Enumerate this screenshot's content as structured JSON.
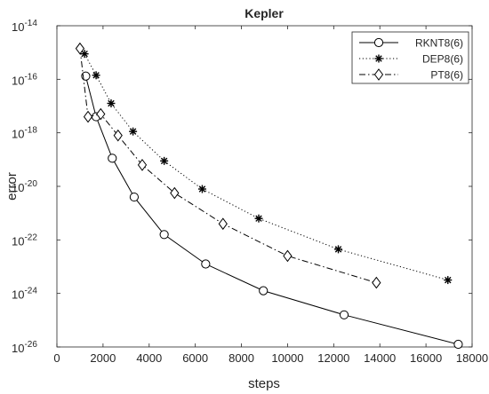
{
  "chart_data": {
    "type": "line",
    "title": "Kepler",
    "xlabel": "steps",
    "ylabel": "error",
    "xlim": [
      0,
      18000
    ],
    "ylim_exp": [
      -26,
      -14
    ],
    "yscale": "log",
    "x_ticks": [
      0,
      2000,
      4000,
      6000,
      8000,
      10000,
      12000,
      14000,
      16000,
      18000
    ],
    "y_ticks_exp": [
      -26,
      -24,
      -22,
      -20,
      -18,
      -16,
      -14
    ],
    "y_tick_base": "10",
    "grid": false,
    "legend_position": "top-right",
    "series": [
      {
        "name": "RKNT8(6)",
        "color": "#000000",
        "line_style": "solid",
        "marker": "circle",
        "x": [
          1250,
          1700,
          2400,
          3350,
          4650,
          6450,
          8950,
          12450,
          17400
        ],
        "y_exp": [
          -15.88,
          -17.4,
          -18.95,
          -20.4,
          -21.8,
          -22.9,
          -23.9,
          -24.8,
          -25.9
        ]
      },
      {
        "name": "DEP8(6)",
        "color": "#000000",
        "line_style": "dotted",
        "marker": "asterisk",
        "x": [
          1200,
          1700,
          2350,
          3300,
          4650,
          6300,
          8750,
          12200,
          16950
        ],
        "y_exp": [
          -15.05,
          -15.85,
          -16.9,
          -17.95,
          -19.05,
          -20.1,
          -21.2,
          -22.35,
          -23.5
        ]
      },
      {
        "name": "PT8(6)",
        "color": "#000000",
        "line_style": "dashdot",
        "marker": "diamond",
        "x": [
          1000,
          1350,
          1900,
          2650,
          3700,
          5100,
          7200,
          10000,
          13850
        ],
        "y_exp": [
          -14.85,
          -17.4,
          -17.3,
          -18.1,
          -19.2,
          -20.25,
          -21.4,
          -22.6,
          -23.6
        ]
      }
    ]
  }
}
